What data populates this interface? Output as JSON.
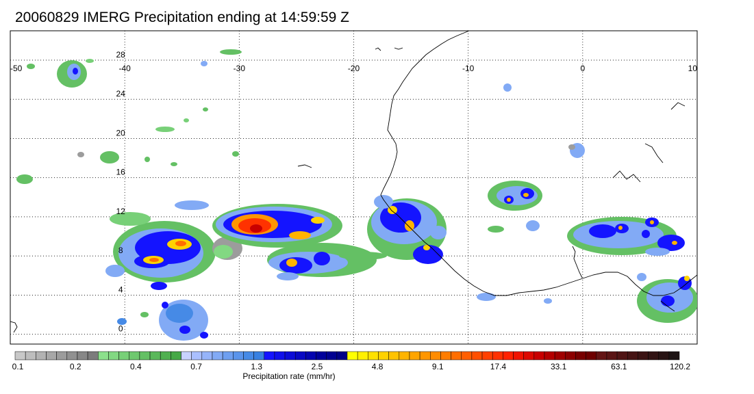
{
  "title": "20060829 IMERG Precipitation ending at 14:59:59 Z",
  "map": {
    "lon_range": [
      -50,
      10
    ],
    "lat_range": [
      -1,
      31
    ],
    "lon_ticks": [
      "-50",
      "-40",
      "-30",
      "-20",
      "-10",
      "0",
      "10"
    ],
    "lat_ticks": [
      "28",
      "24",
      "20",
      "16",
      "12",
      "8",
      "4",
      "0"
    ],
    "grid": "dotted",
    "coastline_color": "#000000"
  },
  "colorbar": {
    "label": "Precipitation rate (mm/hr)",
    "tick_labels": [
      "0.1",
      "0.2",
      "0.4",
      "0.7",
      "1.3",
      "2.5",
      "4.8",
      "9.1",
      "17.4",
      "33.1",
      "63.1",
      "120.2"
    ],
    "colors": [
      "#c8c8c8",
      "#bdbdbd",
      "#b2b2b2",
      "#a7a7a7",
      "#9c9c9c",
      "#919191",
      "#878787",
      "#7c7c7c",
      "#8ce08c",
      "#82d882",
      "#78d078",
      "#6ec86e",
      "#64c064",
      "#5ab85a",
      "#50b050",
      "#46a846",
      "#c8d2ff",
      "#aabfff",
      "#96b4fa",
      "#82aaf5",
      "#6e9ff0",
      "#5a94eb",
      "#468ae6",
      "#3780e1",
      "#1414ff",
      "#1010eb",
      "#0c0cd7",
      "#0808c3",
      "#0404af",
      "#00009b",
      "#000091",
      "#000087",
      "#ffff00",
      "#fff000",
      "#ffe100",
      "#ffd200",
      "#ffc300",
      "#ffb400",
      "#ffa500",
      "#ff9600",
      "#ff8c00",
      "#ff7d00",
      "#ff6e00",
      "#ff5f00",
      "#ff5000",
      "#ff4100",
      "#ff3200",
      "#ff2300",
      "#f01400",
      "#dc0a00",
      "#c80000",
      "#b40000",
      "#a00000",
      "#8c0000",
      "#780000",
      "#6e0000",
      "#641414",
      "#5a1414",
      "#501414",
      "#461414",
      "#3c1414",
      "#321414",
      "#281414",
      "#1e1414"
    ]
  },
  "precip_cells": [
    {
      "region": "north-atlantic-west",
      "lon": -44,
      "lat": 25.5,
      "level": "light"
    },
    {
      "region": "itcz-west",
      "lon": -36,
      "lat": 9,
      "level": "heavy"
    },
    {
      "region": "itcz-central",
      "lon": -29.5,
      "lat": 11.5,
      "level": "very-heavy"
    },
    {
      "region": "west-africa-coast",
      "lon": -16,
      "lat": 11.5,
      "level": "heavy"
    },
    {
      "region": "sahel",
      "lon": -5,
      "lat": 13.5,
      "level": "moderate"
    },
    {
      "region": "nigeria",
      "lon": 5,
      "lat": 10.5,
      "level": "moderate"
    },
    {
      "region": "gulf-of-guinea",
      "lon": 8,
      "lat": 3.5,
      "level": "light"
    }
  ]
}
